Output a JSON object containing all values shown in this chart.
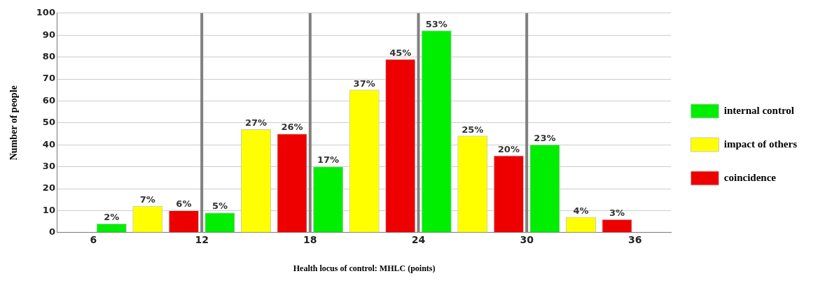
{
  "chart_data": {
    "type": "bar",
    "xlabel": "Health locus of control: MHLC (points)",
    "ylabel": "Number of people",
    "xlim": [
      4,
      38
    ],
    "xticks": [
      6,
      12,
      18,
      24,
      30,
      36
    ],
    "ylim": [
      0,
      100
    ],
    "yticks": [
      0,
      10,
      20,
      30,
      40,
      50,
      60,
      70,
      80,
      90,
      100
    ],
    "grid": "y",
    "legend": "right",
    "series": [
      {
        "name": "internal control",
        "color": "#00ee00",
        "x": [
          7,
          13,
          19,
          25,
          31
        ],
        "values": [
          4,
          9,
          30,
          92,
          40
        ]
      },
      {
        "name": "impact of others",
        "color": "#ffff00",
        "x": [
          9,
          15,
          21,
          27,
          33
        ],
        "values": [
          12,
          47,
          65,
          44,
          7
        ]
      },
      {
        "name": "coincidence",
        "color": "#ee0000",
        "x": [
          11,
          17,
          23,
          29,
          35
        ],
        "values": [
          10,
          45,
          79,
          35,
          6
        ]
      }
    ],
    "annotations": [
      {
        "text": "2%",
        "x": 7,
        "y": 4
      },
      {
        "text": "5%",
        "x": 13,
        "y": 9
      },
      {
        "text": "17%",
        "x": 19,
        "y": 30
      },
      {
        "text": "53%",
        "x": 25,
        "y": 92
      },
      {
        "text": "23%",
        "x": 31,
        "y": 40
      },
      {
        "text": "7%",
        "x": 9,
        "y": 12
      },
      {
        "text": "27%",
        "x": 15,
        "y": 47
      },
      {
        "text": "37%",
        "x": 21,
        "y": 65
      },
      {
        "text": "25%",
        "x": 27,
        "y": 44
      },
      {
        "text": "4%",
        "x": 33,
        "y": 7
      },
      {
        "text": "6%",
        "x": 11,
        "y": 10
      },
      {
        "text": "26%",
        "x": 17,
        "y": 45
      },
      {
        "text": "45%",
        "x": 23,
        "y": 79
      },
      {
        "text": "20%",
        "x": 29,
        "y": 35
      },
      {
        "text": "3%",
        "x": 35,
        "y": 6
      }
    ],
    "ref_lines": [
      {
        "axis": "x",
        "value": 12,
        "color": "#808080"
      },
      {
        "axis": "x",
        "value": 18,
        "color": "#808080"
      },
      {
        "axis": "x",
        "value": 24,
        "color": "#808080"
      },
      {
        "axis": "x",
        "value": 30,
        "color": "#808080"
      }
    ]
  }
}
